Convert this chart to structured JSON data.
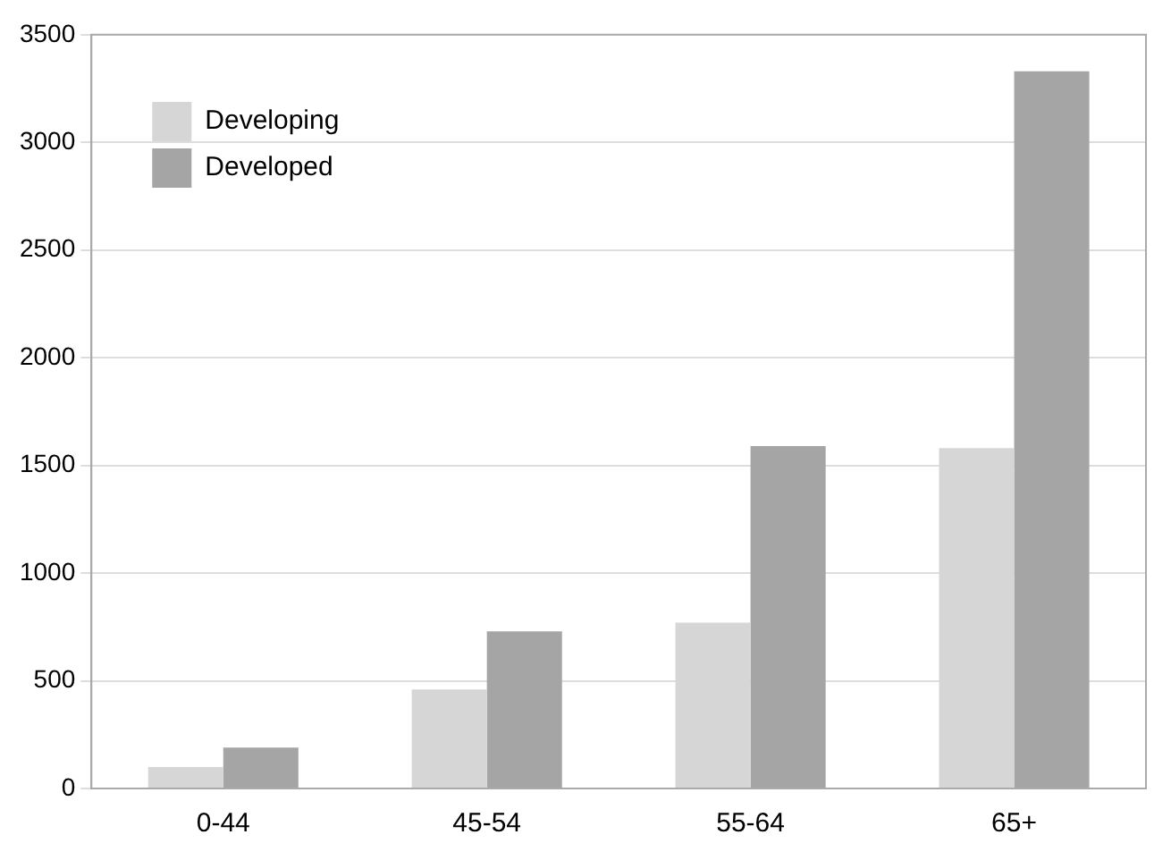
{
  "chart_data": {
    "type": "bar",
    "categories": [
      "0-44",
      "45-54",
      "55-64",
      "65+"
    ],
    "series": [
      {
        "name": "Developing",
        "color": "#d6d6d6",
        "values": [
          100,
          460,
          770,
          1580
        ]
      },
      {
        "name": "Developed",
        "color": "#a5a5a5",
        "values": [
          190,
          730,
          1590,
          3330
        ]
      }
    ],
    "ylim": [
      0,
      3500
    ],
    "yticks": [
      0,
      500,
      1000,
      1500,
      2000,
      2500,
      3000,
      3500
    ],
    "grid": "y",
    "legend": "top left"
  }
}
